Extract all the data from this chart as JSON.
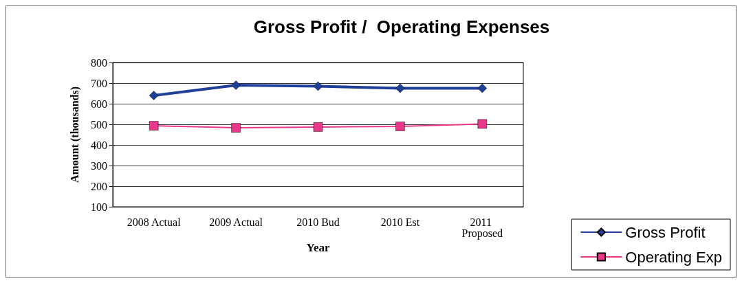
{
  "chart_data": {
    "type": "line",
    "title": "Gross Profit /  Operating Expenses",
    "xlabel": "Year",
    "ylabel": "Amount (thousands)",
    "categories": [
      "2008 Actual",
      "2009 Actual",
      "2010 Bud",
      "2010 Est",
      "2011 Proposed"
    ],
    "series": [
      {
        "name": "Gross Profit",
        "color": "#1f3f99",
        "marker": "diamond",
        "values": [
          640,
          690,
          685,
          675,
          675
        ]
      },
      {
        "name": "Operating Exp",
        "color": "#e8388a",
        "marker": "square",
        "values": [
          493,
          483,
          487,
          490,
          502
        ]
      }
    ],
    "ylim": [
      100,
      800
    ],
    "yticks": [
      100,
      200,
      300,
      400,
      500,
      600,
      700,
      800
    ],
    "grid": "y",
    "legend": "bottom right",
    "line_style": "solid"
  }
}
